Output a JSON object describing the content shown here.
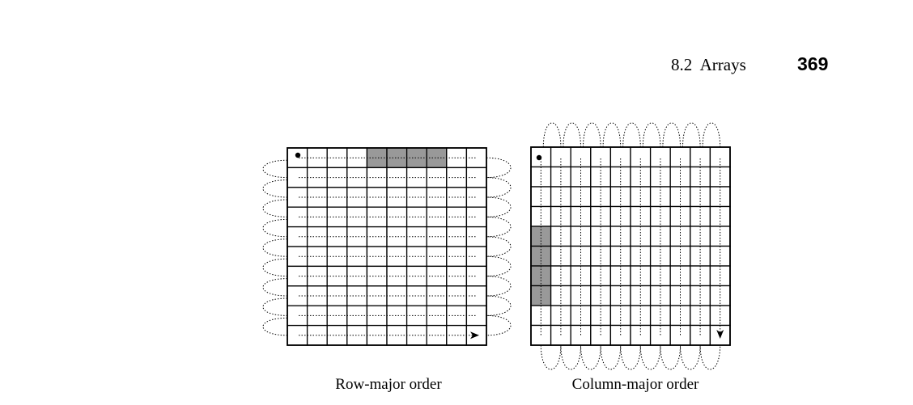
{
  "header": {
    "section": "8.2  Arrays",
    "page_number": "369"
  },
  "figures": {
    "row_major": {
      "caption": "Row-major order",
      "rows": 10,
      "cols": 10,
      "highlighted_cells": [
        [
          0,
          4
        ],
        [
          0,
          5
        ],
        [
          0,
          6
        ],
        [
          0,
          7
        ]
      ]
    },
    "column_major": {
      "caption": "Column-major order",
      "rows": 10,
      "cols": 10,
      "highlighted_cells": [
        [
          4,
          0
        ],
        [
          5,
          0
        ],
        [
          6,
          0
        ],
        [
          7,
          0
        ]
      ]
    }
  },
  "colors": {
    "highlight": "#999999",
    "grid": "#000000"
  }
}
